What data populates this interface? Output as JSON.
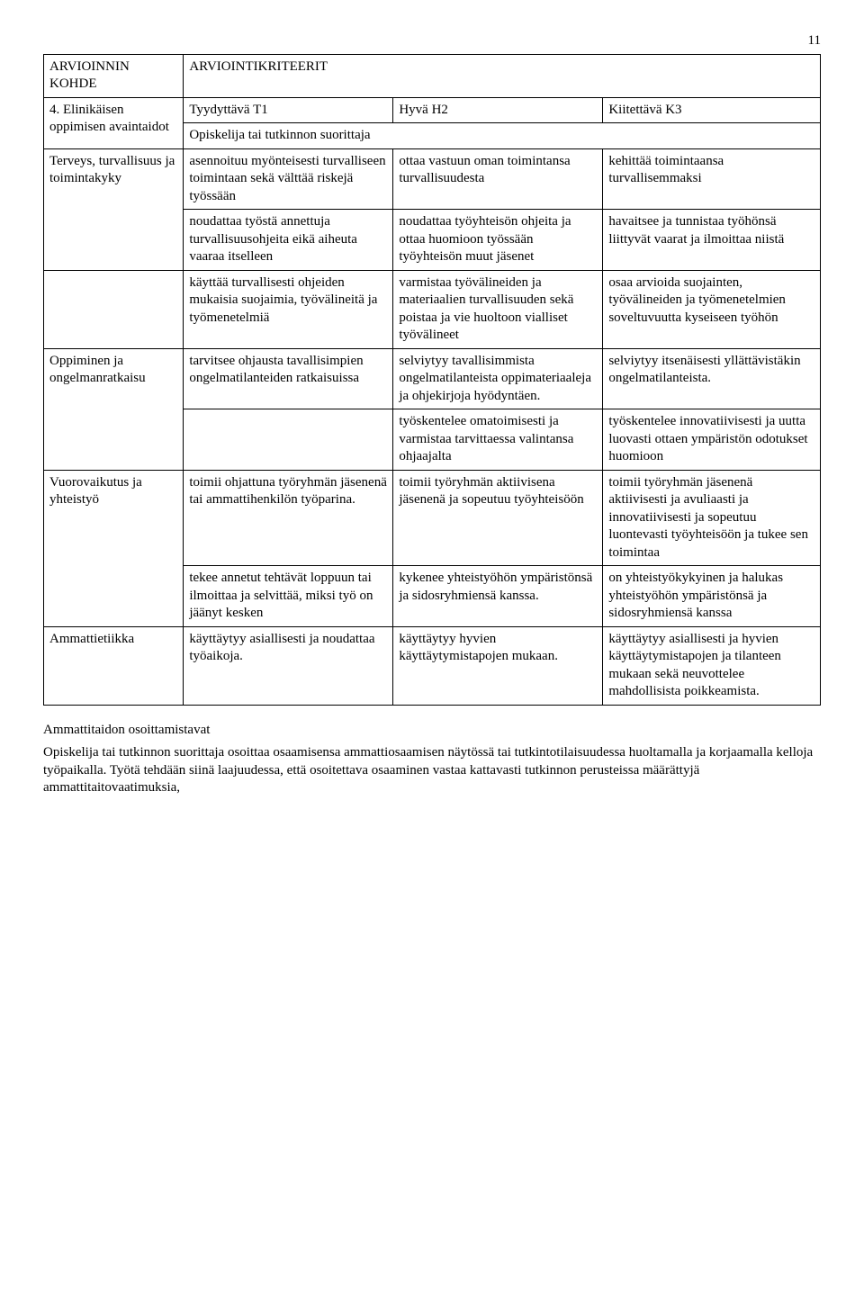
{
  "page_number": "11",
  "header": {
    "left_label": "ARVIOINNIN KOHDE",
    "right_label": "ARVIOINTIKRITEERIT",
    "section_title": "4. Elinikäisen oppimisen avaintaidot",
    "t1": "Tyydyttävä T1",
    "h2": "Hyvä H2",
    "k3": "Kiitettävä K3",
    "subtitle": "Opiskelija tai tutkinnon suorittaja"
  },
  "rows": {
    "r1": {
      "label": "Terveys, turvallisuus ja toimintakyky",
      "t1": "asennoituu myönteisesti turvalliseen toimintaan sekä välttää riskejä työssään",
      "h2": "ottaa vastuun oman toimintansa turvallisuudesta",
      "k3": "kehittää toimintaansa turvallisemmaksi"
    },
    "r2": {
      "t1": "noudattaa työstä annettuja turvallisuusohjeita eikä aiheuta vaaraa itselleen",
      "h2": "noudattaa työyhteisön ohjeita ja ottaa huomioon työssään työyhteisön muut jäsenet",
      "k3": "havaitsee ja tunnistaa työhönsä liittyvät vaarat ja ilmoittaa niistä"
    },
    "r3": {
      "t1": "käyttää turvallisesti ohjeiden mukaisia suojaimia, työvälineitä ja työmenetelmiä",
      "h2": "varmistaa työvälineiden ja materiaalien turvallisuuden sekä poistaa ja vie huoltoon vialliset työvälineet",
      "k3": "osaa arvioida suojainten, työvälineiden ja työmenetelmien soveltuvuutta kyseiseen työhön"
    },
    "r4": {
      "label": "Oppiminen ja ongelmanratkaisu",
      "t1": "tarvitsee ohjausta tavallisimpien ongelmatilanteiden ratkaisuissa",
      "h2": "selviytyy tavallisimmista ongelmatilanteista oppimateriaaleja ja ohjekirjoja hyödyntäen.",
      "k3": "selviytyy itsenäisesti yllättävistäkin ongelmatilanteista."
    },
    "r5": {
      "h2": "työskentelee omatoimisesti ja varmistaa tarvittaessa valintansa ohjaajalta",
      "k3": "työskentelee innovatiivisesti ja uutta luovasti ottaen ympäristön odotukset huomioon"
    },
    "r6": {
      "label": "Vuorovaikutus ja yhteistyö",
      "t1": "toimii ohjattuna työryhmän jäsenenä tai ammattihenkilön työparina.",
      "h2": "toimii työryhmän aktiivisena jäsenenä ja sopeutuu työyhteisöön",
      "k3": "toimii työryhmän jäsenenä aktiivisesti ja avuliaasti ja innovatiivisesti ja sopeutuu luontevasti työyhteisöön ja tukee sen toimintaa"
    },
    "r7": {
      "t1": "tekee annetut tehtävät loppuun tai ilmoittaa ja selvittää, miksi työ on jäänyt kesken",
      "h2": "kykenee yhteistyöhön ympäristönsä ja sidosryhmiensä kanssa.",
      "k3": "on yhteistyökykyinen ja halukas yhteistyöhön ympäristönsä ja sidosryhmiensä kanssa"
    },
    "r8": {
      "label": "Ammattietiikka",
      "t1": "käyttäytyy asiallisesti ja noudattaa työaikoja.",
      "h2": "käyttäytyy hyvien käyttäytymistapojen mukaan.",
      "k3": "käyttäytyy asiallisesti ja hyvien käyttäytymistapojen ja tilanteen mukaan sekä neuvottelee mahdollisista poikkeamista."
    }
  },
  "body": {
    "p1": "Ammattitaidon osoittamistavat",
    "p2": "Opiskelija tai tutkinnon suorittaja osoittaa osaamisensa ammattiosaamisen näytössä tai tutkintotilaisuudessa huoltamalla ja korjaamalla kelloja työpaikalla. Työtä tehdään siinä laajuudessa, että osoitettava osaaminen vastaa kattavasti tutkinnon perusteissa määrättyjä ammattitaitovaatimuksia,"
  }
}
